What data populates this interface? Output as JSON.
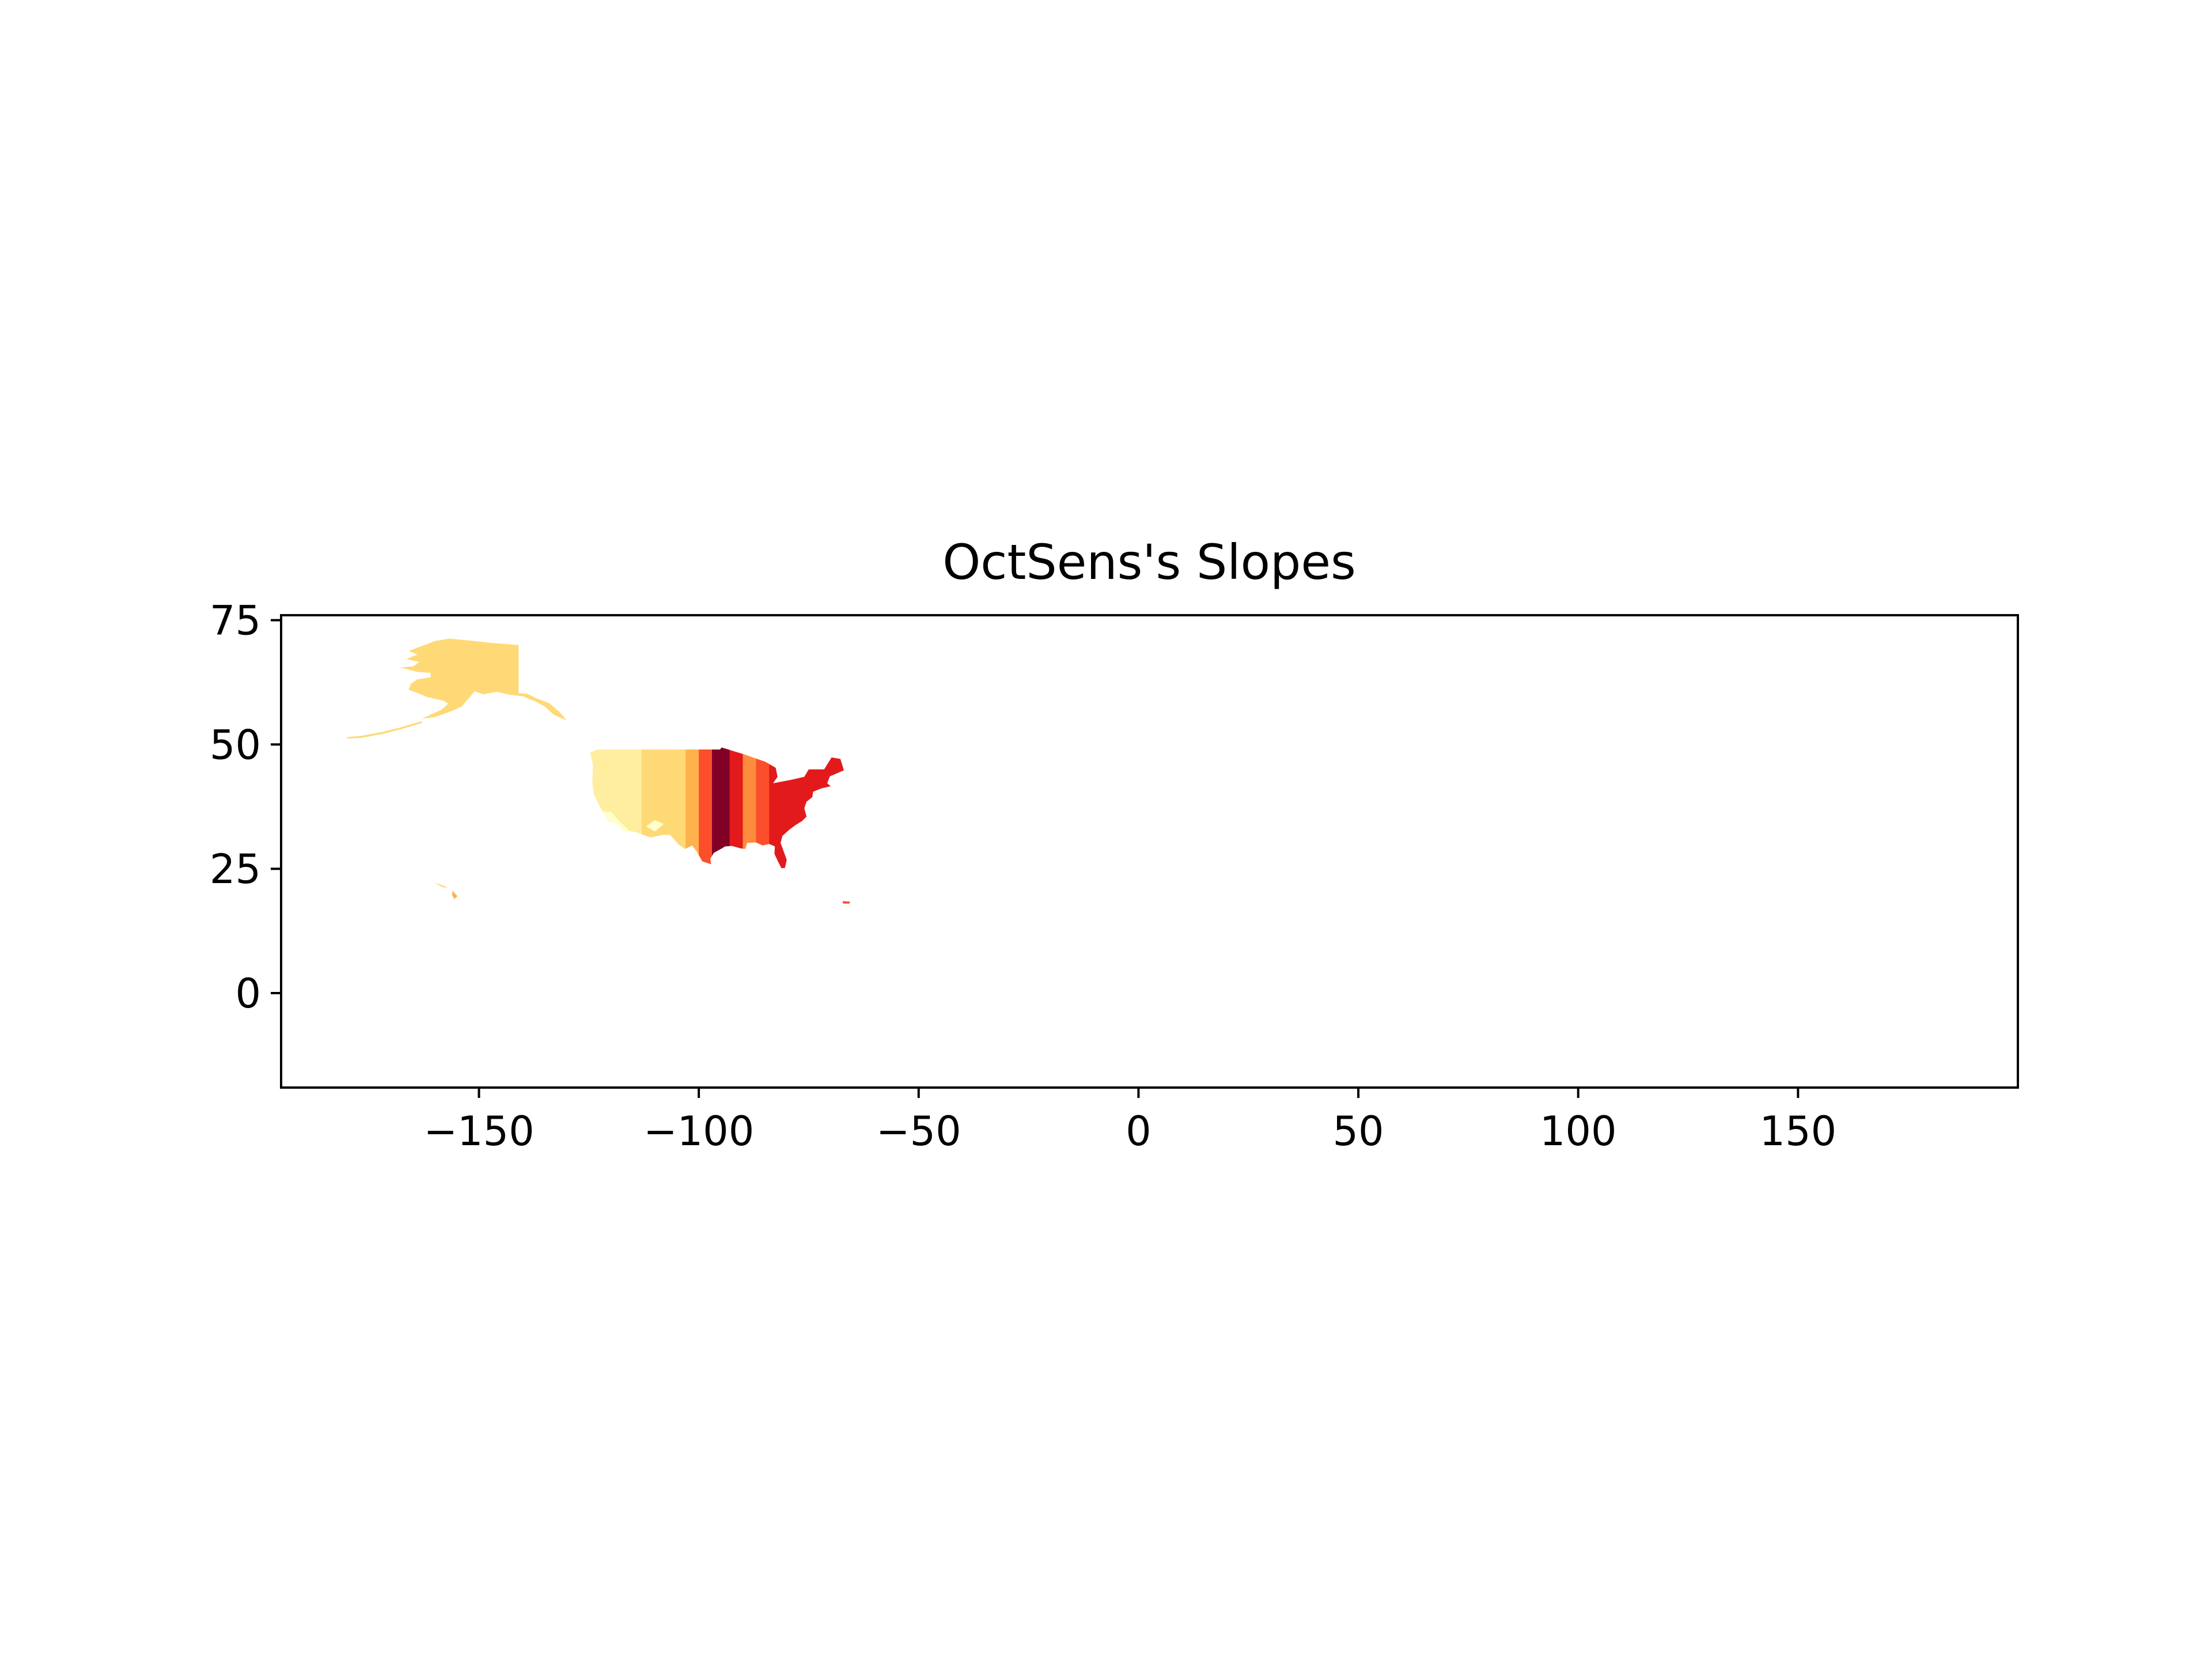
{
  "chart_data": {
    "type": "heatmap",
    "title": "OctSens's Slopes",
    "xlabel": "",
    "ylabel": "",
    "xlim": [
      -195,
      200
    ],
    "ylim": [
      -19,
      76
    ],
    "xticks": [
      -150,
      -100,
      -50,
      0,
      50,
      100,
      150
    ],
    "yticks": [
      0,
      25,
      50,
      75
    ],
    "xtick_labels": [
      "−150",
      "−100",
      "−50",
      "0",
      "50",
      "100",
      "150"
    ],
    "ytick_labels": [
      "0",
      "25",
      "50",
      "75"
    ],
    "grid": false,
    "legend": "none",
    "colormap": "YlOrRd",
    "colors": {
      "level1": "#ffffcc",
      "level2": "#ffeda0",
      "level3": "#fed976",
      "level4": "#feb24c",
      "level5": "#fd8d3c",
      "level6": "#fc4e2a",
      "level7": "#e31a1c",
      "level8": "#bd0026",
      "level9": "#800026"
    },
    "regions": [
      {
        "name": "Alaska",
        "level": 3,
        "lon": [
          -168,
          -141
        ],
        "lat": [
          52,
          71
        ]
      },
      {
        "name": "Hawaii",
        "level": 4,
        "lon": [
          -160,
          -155
        ],
        "lat": [
          19,
          22
        ]
      },
      {
        "name": "Puerto Rico",
        "level": 6,
        "lon": [
          -67,
          -65
        ],
        "lat": [
          18,
          18.5
        ]
      },
      {
        "name": "Contiguous United States",
        "level": "2-9",
        "lon": [
          -125,
          -67
        ],
        "lat": [
          25,
          49
        ]
      }
    ],
    "contiguous_bands": [
      {
        "lon": [
          -125,
          -113
        ],
        "level": 2
      },
      {
        "lon": [
          -113,
          -103
        ],
        "level": 3
      },
      {
        "lon": [
          -103,
          -100
        ],
        "level": 4
      },
      {
        "lon": [
          -100,
          -97
        ],
        "level": 6
      },
      {
        "lon": [
          -97,
          -93
        ],
        "level": 9
      },
      {
        "lon": [
          -93,
          -90
        ],
        "level": 7
      },
      {
        "lon": [
          -90,
          -87
        ],
        "level": 5
      },
      {
        "lon": [
          -87,
          -84
        ],
        "level": 6
      },
      {
        "lon": [
          -84,
          -67
        ],
        "level": 7
      }
    ]
  }
}
